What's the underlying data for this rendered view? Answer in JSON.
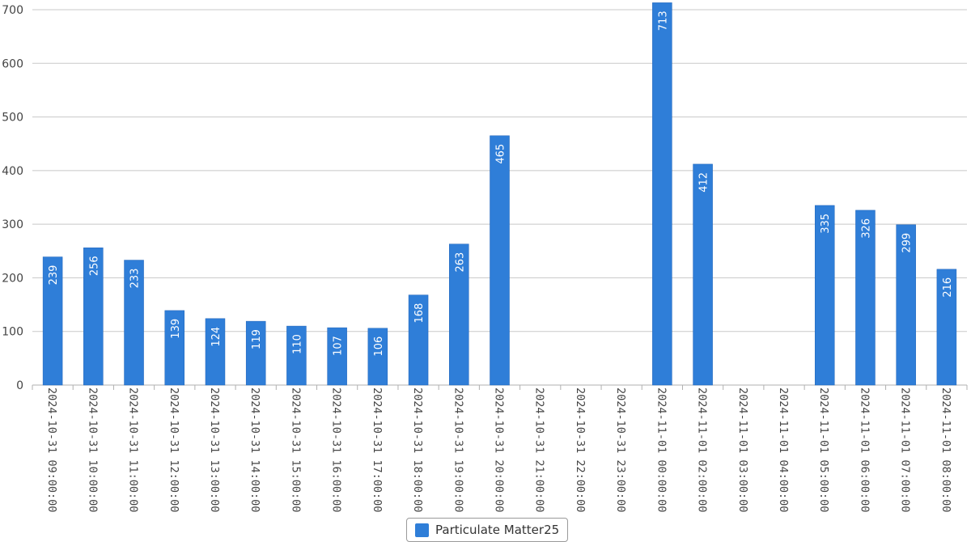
{
  "chart_data": {
    "type": "bar",
    "categories": [
      "2024-10-31 09:00:00",
      "2024-10-31 10:00:00",
      "2024-10-31 11:00:00",
      "2024-10-31 12:00:00",
      "2024-10-31 13:00:00",
      "2024-10-31 14:00:00",
      "2024-10-31 15:00:00",
      "2024-10-31 16:00:00",
      "2024-10-31 17:00:00",
      "2024-10-31 18:00:00",
      "2024-10-31 19:00:00",
      "2024-10-31 20:00:00",
      "2024-10-31 21:00:00",
      "2024-10-31 22:00:00",
      "2024-10-31 23:00:00",
      "2024-11-01 00:00:00",
      "2024-11-01 02:00:00",
      "2024-11-01 03:00:00",
      "2024-11-01 04:00:00",
      "2024-11-01 05:00:00",
      "2024-11-01 06:00:00",
      "2024-11-01 07:00:00",
      "2024-11-01 08:00:00"
    ],
    "series": [
      {
        "name": "Particulate Matter25",
        "values": [
          239,
          256,
          233,
          139,
          124,
          119,
          110,
          107,
          106,
          168,
          263,
          465,
          null,
          null,
          null,
          713,
          412,
          null,
          null,
          335,
          326,
          299,
          216
        ]
      }
    ],
    "ylim": [
      0,
      700
    ],
    "yticks": [
      0,
      100,
      200,
      300,
      400,
      500,
      600,
      700
    ],
    "title": "",
    "xlabel": "",
    "ylabel": "",
    "grid": true,
    "legend_position": "bottom-center",
    "colors": {
      "bar": "#2f7ed8",
      "bar_edge": "#1f63b8",
      "grid": "#c8c8c8",
      "axis": "#b0b0b0",
      "tick_text": "#444444",
      "data_label": "#ffffff"
    }
  }
}
